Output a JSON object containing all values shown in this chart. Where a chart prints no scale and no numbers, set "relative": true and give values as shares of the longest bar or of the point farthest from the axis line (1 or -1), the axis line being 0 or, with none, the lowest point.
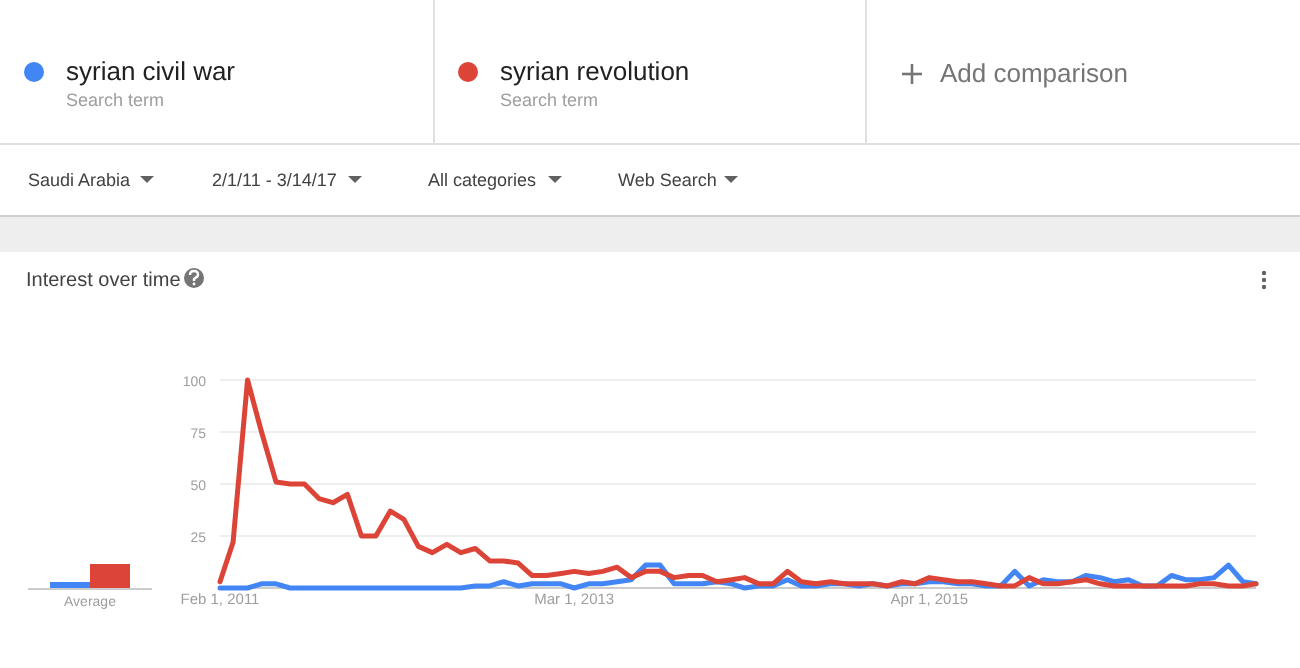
{
  "chart_data": [
    {
      "type": "line",
      "title": "Interest over time",
      "legend": "top",
      "grid": "y",
      "annotations": [
        "Search term",
        "Search term",
        "Add comparison",
        "Saudi Arabia",
        "2/1/11 - 3/14/17",
        "All categories",
        "Web Search"
      ],
      "x": [
        "2011-02",
        "2011-03",
        "2011-04",
        "2011-05",
        "2011-06",
        "2011-07",
        "2011-08",
        "2011-09",
        "2011-10",
        "2011-11",
        "2011-12",
        "2012-01",
        "2012-02",
        "2012-03",
        "2012-04",
        "2012-05",
        "2012-06",
        "2012-07",
        "2012-08",
        "2012-09",
        "2012-10",
        "2012-11",
        "2012-12",
        "2013-01",
        "2013-02",
        "2013-03",
        "2013-04",
        "2013-05",
        "2013-06",
        "2013-07",
        "2013-08",
        "2013-09",
        "2013-10",
        "2013-11",
        "2013-12",
        "2014-01",
        "2014-02",
        "2014-03",
        "2014-04",
        "2014-05",
        "2014-06",
        "2014-07",
        "2014-08",
        "2014-09",
        "2014-10",
        "2014-11",
        "2014-12",
        "2015-01",
        "2015-02",
        "2015-03",
        "2015-04",
        "2015-05",
        "2015-06",
        "2015-07",
        "2015-08",
        "2015-09",
        "2015-10",
        "2015-11",
        "2015-12",
        "2016-01",
        "2016-02",
        "2016-03",
        "2016-04",
        "2016-05",
        "2016-06",
        "2016-07",
        "2016-08",
        "2016-09",
        "2016-10",
        "2016-11",
        "2016-12",
        "2017-01",
        "2017-02",
        "2017-03"
      ],
      "xlim": [
        "2011-02-01",
        "2017-03-01"
      ],
      "xticks": [
        {
          "value": "2011-02-01",
          "label": "Feb 1, 2011"
        },
        {
          "value": "2013-03-01",
          "label": "Mar 1, 2013"
        },
        {
          "value": "2015-04-01",
          "label": "Apr 1, 2015"
        }
      ],
      "ylim": [
        0,
        100
      ],
      "yticks": [
        25,
        50,
        75,
        100
      ],
      "series": [
        {
          "name": "syrian civil war",
          "color": "#4285f4",
          "values": [
            0,
            0,
            0,
            2,
            2,
            0,
            0,
            0,
            0,
            0,
            0,
            0,
            0,
            0,
            0,
            0,
            0,
            0,
            1,
            1,
            3,
            1,
            2,
            2,
            2,
            0,
            2,
            2,
            3,
            4,
            11,
            11,
            2,
            2,
            2,
            3,
            2,
            0,
            1,
            1,
            4,
            1,
            1,
            2,
            2,
            1,
            2,
            1,
            2,
            2,
            3,
            3,
            2,
            2,
            1,
            1,
            8,
            1,
            4,
            3,
            3,
            6,
            5,
            3,
            4,
            1,
            1,
            6,
            4,
            4,
            5,
            11,
            3,
            2
          ]
        },
        {
          "name": "syrian revolution",
          "color": "#db4437",
          "values": [
            3,
            22,
            100,
            75,
            51,
            50,
            50,
            43,
            41,
            45,
            25,
            25,
            37,
            33,
            20,
            17,
            21,
            17,
            19,
            13,
            13,
            12,
            6,
            6,
            7,
            8,
            7,
            8,
            10,
            5,
            8,
            8,
            5,
            6,
            6,
            3,
            4,
            5,
            2,
            2,
            8,
            3,
            2,
            3,
            2,
            2,
            2,
            1,
            3,
            2,
            5,
            4,
            3,
            3,
            2,
            1,
            1,
            5,
            2,
            2,
            3,
            4,
            2,
            1,
            1,
            1,
            1,
            1,
            1,
            2,
            2,
            1,
            1,
            2
          ]
        }
      ]
    },
    {
      "type": "bar",
      "relative": true,
      "categories": [
        "Average"
      ],
      "series": [
        {
          "color": "#4285f4",
          "values": [
            0.25
          ]
        },
        {
          "color": "#db4437",
          "values": [
            1
          ]
        }
      ]
    }
  ]
}
